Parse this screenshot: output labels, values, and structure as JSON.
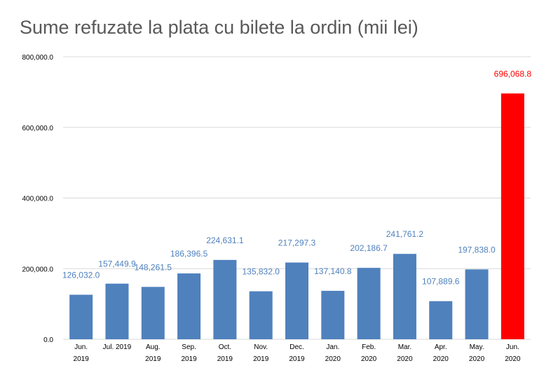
{
  "chart_data": {
    "type": "bar",
    "title": "Sume refuzate la plata cu bilete la ordin (mii lei)",
    "categories": [
      [
        "Jun.",
        "2019"
      ],
      [
        "Jul. 2019"
      ],
      [
        "Aug.",
        "2019"
      ],
      [
        "Sep.",
        "2019"
      ],
      [
        "Oct.",
        "2019"
      ],
      [
        "Nov.",
        "2019"
      ],
      [
        "Dec.",
        "2019"
      ],
      [
        "Jan.",
        "2020"
      ],
      [
        "Feb.",
        "2020"
      ],
      [
        "Mar.",
        "2020"
      ],
      [
        "Apr.",
        "2020"
      ],
      [
        "May.",
        "2020"
      ],
      [
        "Jun.",
        "2020"
      ]
    ],
    "values": [
      126032.0,
      157449.9,
      148261.5,
      186396.5,
      224631.1,
      135832.0,
      217297.3,
      137140.8,
      202186.7,
      241761.2,
      107889.6,
      197838.0,
      696068.8
    ],
    "data_labels": [
      "126,032.0",
      "157,449.9",
      "148,261.5",
      "186,396.5",
      "224,631.1",
      "135,832.0",
      "217,297.3",
      "137,140.8",
      "202,186.7",
      "241,761.2",
      "107,889.6",
      "197,838.0",
      "696,068.8"
    ],
    "highlight_index": 12,
    "ylim": [
      0,
      800000
    ],
    "yticks": [
      0,
      200000,
      400000,
      600000,
      800000
    ],
    "ytick_labels": [
      "0.0",
      "200,000.0",
      "400,000.0",
      "600,000.0",
      "800,000.0"
    ],
    "xlabel": "",
    "ylabel": "",
    "grid": true,
    "legend": "none",
    "colors": {
      "bar": "#4f81bd",
      "highlight": "#ff0000",
      "label": "#4f81bd",
      "highlight_label": "#ff0000",
      "grid": "#d9d9d9",
      "title": "#595959"
    }
  }
}
